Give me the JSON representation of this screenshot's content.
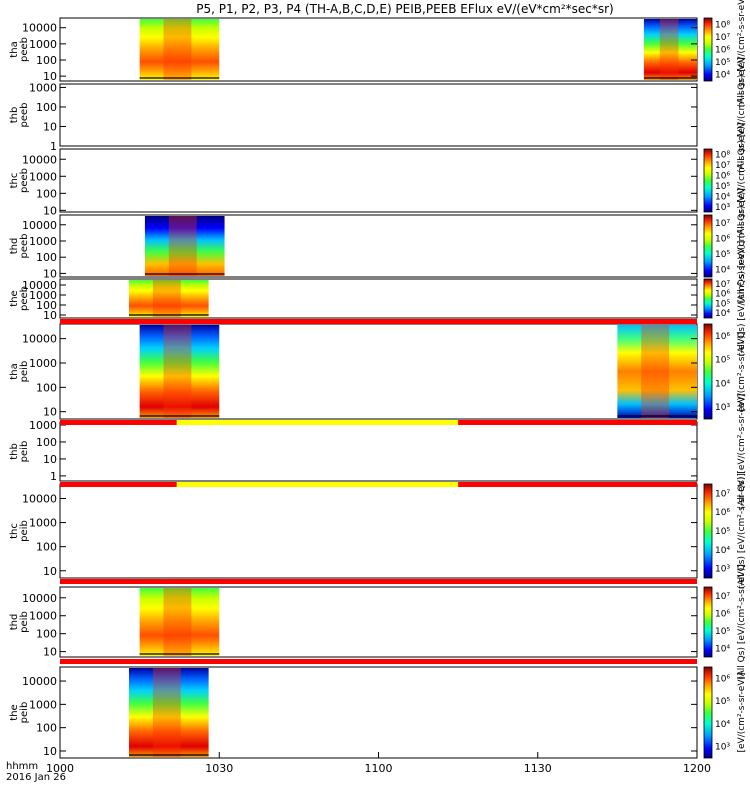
{
  "chart_data": {
    "type": "heatmap",
    "title": "P5, P1, P2, P3, P4 (TH-A,B,C,D,E) PEIB,PEEB EFlux eV/(eV*cm²*sec*sr)",
    "x_ticks": [
      "1000",
      "1030",
      "1100",
      "1130",
      "1200"
    ],
    "x_label_lines": [
      "hhmm",
      "2016 Jan 26"
    ],
    "time_range": [
      "10:00",
      "12:00"
    ],
    "colors": {
      "mode_bar_red": "#ff0000",
      "mode_bar_yellow": "#ffff00",
      "colormap": [
        "#000080",
        "#0000ff",
        "#00a0ff",
        "#00ffd0",
        "#40ff40",
        "#c8ff00",
        "#ffff00",
        "#ffa000",
        "#ff5000",
        "#e00000",
        "#800000"
      ]
    },
    "panels": [
      {
        "id": "tha_peeb",
        "ylabel": [
          "tha",
          "peeb"
        ],
        "y_ticks": [
          "10",
          "100",
          "1000",
          "10000"
        ],
        "ylog": [
          5,
          40000
        ],
        "data_intervals": [
          [
            "10:15",
            "10:30"
          ],
          [
            "11:50",
            "12:00"
          ]
        ],
        "colorbar": {
          "ticks": [
            "10⁴",
            "10⁵",
            "10⁶",
            "10⁷",
            "10⁸"
          ],
          "label": "(All Qs) [eV/(cm²-s-sr-eV)]"
        }
      },
      {
        "id": "thb_peeb",
        "ylabel": [
          "thb",
          "peeb"
        ],
        "y_ticks": [
          "1",
          "10",
          "100",
          "1000"
        ],
        "ylog": [
          1,
          1500
        ],
        "data_intervals": [],
        "colorbar": {
          "ticks": [],
          "label": "(All Qs) [eV/(cm²-s-sr-eV)]"
        }
      },
      {
        "id": "thc_peeb",
        "ylabel": [
          "thc",
          "peeb"
        ],
        "y_ticks": [
          "10",
          "100",
          "1000",
          "10000"
        ],
        "ylog": [
          8,
          40000
        ],
        "data_intervals": [],
        "colorbar": {
          "ticks": [
            "10³",
            "10⁴",
            "10⁵",
            "10⁶",
            "10⁷",
            "10⁸"
          ],
          "label": "(All Qs) [eV/(cm²-s-sr-eV)]"
        }
      },
      {
        "id": "thd_peeb",
        "ylabel": [
          "thd",
          "peeb"
        ],
        "y_ticks": [
          "10",
          "100",
          "1000",
          "10000"
        ],
        "ylog": [
          6,
          40000
        ],
        "data_intervals": [
          [
            "10:16",
            "10:31"
          ]
        ],
        "colorbar": {
          "ticks": [
            "10⁴",
            "10⁵",
            "10⁶",
            "10⁷"
          ],
          "label": "(All Qs) [eV/(cm²-s-sr-eV)]"
        }
      },
      {
        "id": "the_peeb",
        "ylabel": [
          "the",
          "peeb"
        ],
        "y_ticks": [
          "10",
          "100",
          "1000",
          "10000"
        ],
        "ylog": [
          5,
          40000
        ],
        "data_intervals": [
          [
            "10:13",
            "10:28"
          ]
        ],
        "colorbar": {
          "ticks": [
            "10⁴",
            "10⁵",
            "10⁶",
            "10⁷"
          ],
          "label": "(All Qs) [eV/(cm²-s-sr-eV)]"
        }
      },
      {
        "id": "tha_peib",
        "ylabel": [
          "tha",
          "peib"
        ],
        "y_ticks": [
          "10",
          "100",
          "1000",
          "10000"
        ],
        "ylog": [
          5,
          40000
        ],
        "data_intervals": [
          [
            "10:15",
            "10:30"
          ],
          [
            "11:45",
            "12:00"
          ]
        ],
        "colorbar": {
          "ticks": [
            "10³",
            "10⁴",
            "10⁵",
            "10⁶"
          ],
          "label": "[eV/(cm²-s-sr-eV)]"
        }
      },
      {
        "id": "thb_peib",
        "ylabel": [
          "thb",
          "peib"
        ],
        "y_ticks": [
          "1",
          "10",
          "100",
          "1000"
        ],
        "ylog": [
          0.5,
          1500
        ],
        "data_intervals": [],
        "colorbar": {
          "ticks": [],
          "label": "(All Qs) [eV/(cm²-s-sr-eV)]"
        }
      },
      {
        "id": "thc_peib",
        "ylabel": [
          "thc",
          "peib"
        ],
        "y_ticks": [
          "10",
          "100",
          "1000",
          "10000"
        ],
        "ylog": [
          5,
          40000
        ],
        "data_intervals": [],
        "colorbar": {
          "ticks": [
            "10³",
            "10⁴",
            "10⁵",
            "10⁶",
            "10⁷"
          ],
          "label": "(All Qs) [eV/(cm²-s-sr-eV)]"
        }
      },
      {
        "id": "thd_peib",
        "ylabel": [
          "thd",
          "peib"
        ],
        "y_ticks": [
          "10",
          "100",
          "1000",
          "10000"
        ],
        "ylog": [
          5,
          40000
        ],
        "data_intervals": [
          [
            "10:15",
            "10:30"
          ]
        ],
        "colorbar": {
          "ticks": [
            "10⁴",
            "10⁵",
            "10⁶",
            "10⁷"
          ],
          "label": "(All Qs) [eV/(cm²-s-sr-eV)]"
        }
      },
      {
        "id": "the_peib",
        "ylabel": [
          "the",
          "peib"
        ],
        "y_ticks": [
          "10",
          "100",
          "1000",
          "10000"
        ],
        "ylog": [
          5,
          40000
        ],
        "data_intervals": [
          [
            "10:13",
            "10:28"
          ]
        ],
        "colorbar": {
          "ticks": [
            "10³",
            "10⁴",
            "10⁵",
            "10⁶"
          ],
          "label": "[eV/(cm²-s-sr-eV)]"
        }
      }
    ],
    "mode_bars": [
      {
        "after_panel": "the_peeb",
        "segments": [
          {
            "from": "10:00",
            "to": "12:00",
            "color": "red"
          }
        ]
      },
      {
        "after_panel": "tha_peib",
        "segments": [
          {
            "from": "10:00",
            "to": "10:22",
            "color": "red"
          },
          {
            "from": "10:22",
            "to": "11:15",
            "color": "yellow"
          },
          {
            "from": "11:15",
            "to": "12:00",
            "color": "red"
          }
        ]
      },
      {
        "after_panel": "thb_peib",
        "segments": [
          {
            "from": "10:00",
            "to": "10:22",
            "color": "red"
          },
          {
            "from": "10:22",
            "to": "11:15",
            "color": "yellow"
          },
          {
            "from": "11:15",
            "to": "12:00",
            "color": "red"
          }
        ]
      },
      {
        "after_panel": "thc_peib",
        "segments": [
          {
            "from": "10:00",
            "to": "12:00",
            "color": "red"
          }
        ]
      },
      {
        "after_panel": "thd_peib",
        "segments": [
          {
            "from": "10:00",
            "to": "12:00",
            "color": "red"
          }
        ]
      }
    ]
  }
}
